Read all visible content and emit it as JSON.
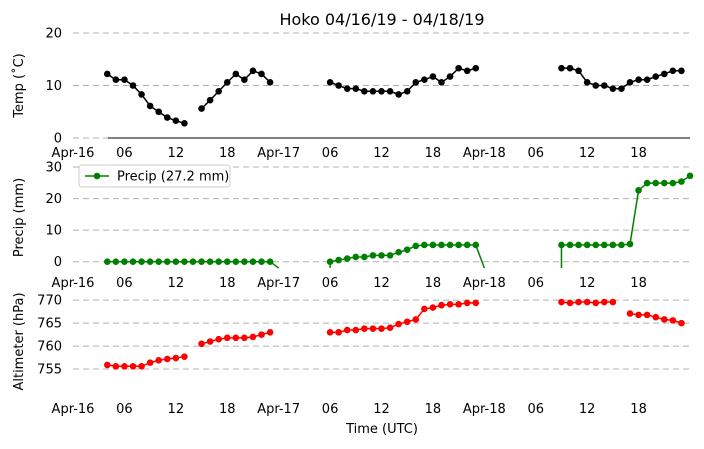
{
  "title": "Hoko 04/16/19 - 04/18/19",
  "xlabel": "Time (UTC)",
  "x_tick_labels": [
    "Apr-16",
    "06",
    "12",
    "18",
    "Apr-17",
    "06",
    "12",
    "18",
    "Apr-18",
    "06",
    "12",
    "18"
  ],
  "colors": {
    "temp": "#000000",
    "precip": "#008000",
    "altimeter": "#ff0000",
    "grid": "#b0b0b0"
  },
  "chart_data": [
    {
      "type": "line",
      "ylabel": "Temp (˚C)",
      "ylim": [
        0,
        20
      ],
      "yticks": [
        0,
        10,
        20
      ],
      "grid": "horizontal dashed",
      "series": [
        {
          "values": [
            [
              "04-16 04:00",
              12.2
            ],
            [
              "04-16 05:00",
              11.1
            ],
            [
              "04-16 06:00",
              11.1
            ],
            [
              "04-16 07:00",
              10.0
            ],
            [
              "04-16 08:00",
              8.3
            ],
            [
              "04-16 09:00",
              6.1
            ],
            [
              "04-16 10:00",
              5.0
            ],
            [
              "04-16 11:00",
              3.9
            ],
            [
              "04-16 12:00",
              3.3
            ],
            [
              "04-16 13:00",
              2.8
            ],
            [
              "04-16 15:00",
              5.6
            ],
            [
              "04-16 16:00",
              7.2
            ],
            [
              "04-16 17:00",
              8.9
            ],
            [
              "04-16 18:00",
              10.6
            ],
            [
              "04-16 19:00",
              12.2
            ],
            [
              "04-16 20:00",
              11.1
            ],
            [
              "04-16 21:00",
              12.8
            ],
            [
              "04-16 22:00",
              12.2
            ],
            [
              "04-16 23:00",
              10.6
            ],
            [
              "04-17 06:00",
              10.6
            ],
            [
              "04-17 07:00",
              10.0
            ],
            [
              "04-17 08:00",
              9.4
            ],
            [
              "04-17 09:00",
              9.4
            ],
            [
              "04-17 10:00",
              8.9
            ],
            [
              "04-17 11:00",
              8.9
            ],
            [
              "04-17 12:00",
              8.9
            ],
            [
              "04-17 13:00",
              8.9
            ],
            [
              "04-17 14:00",
              8.3
            ],
            [
              "04-17 15:00",
              8.9
            ],
            [
              "04-17 16:00",
              10.6
            ],
            [
              "04-17 17:00",
              11.1
            ],
            [
              "04-17 18:00",
              11.7
            ],
            [
              "04-17 19:00",
              10.6
            ],
            [
              "04-17 20:00",
              11.7
            ],
            [
              "04-17 21:00",
              13.3
            ],
            [
              "04-17 22:00",
              12.8
            ],
            [
              "04-17 23:00",
              13.3
            ],
            [
              "04-18 09:00",
              13.3
            ],
            [
              "04-18 10:00",
              13.3
            ],
            [
              "04-18 11:00",
              12.8
            ],
            [
              "04-18 12:00",
              10.6
            ],
            [
              "04-18 13:00",
              10.0
            ],
            [
              "04-18 14:00",
              10.0
            ],
            [
              "04-18 15:00",
              9.4
            ],
            [
              "04-18 16:00",
              9.4
            ],
            [
              "04-18 17:00",
              10.6
            ],
            [
              "04-18 18:00",
              11.1
            ],
            [
              "04-18 19:00",
              11.1
            ],
            [
              "04-18 20:00",
              11.7
            ],
            [
              "04-18 21:00",
              12.2
            ],
            [
              "04-18 22:00",
              12.8
            ],
            [
              "04-18 23:00",
              12.8
            ]
          ]
        }
      ]
    },
    {
      "type": "line",
      "ylabel": "Precip (mm)",
      "ylim": [
        -2,
        30
      ],
      "yticks": [
        0,
        10,
        20,
        30
      ],
      "grid": "horizontal dashed",
      "legend": "top-left",
      "series": [
        {
          "name": "Precip (27.2 mm)",
          "values": [
            [
              "04-16 04:00",
              0.0
            ],
            [
              "04-16 05:00",
              0.0
            ],
            [
              "04-16 06:00",
              0.0
            ],
            [
              "04-16 07:00",
              0.0
            ],
            [
              "04-16 08:00",
              0.0
            ],
            [
              "04-16 09:00",
              0.0
            ],
            [
              "04-16 10:00",
              0.0
            ],
            [
              "04-16 11:00",
              0.0
            ],
            [
              "04-16 12:00",
              0.0
            ],
            [
              "04-16 13:00",
              0.0
            ],
            [
              "04-16 14:00",
              0.0
            ],
            [
              "04-16 15:00",
              0.0
            ],
            [
              "04-16 16:00",
              0.0
            ],
            [
              "04-16 17:00",
              0.0
            ],
            [
              "04-16 18:00",
              0.0
            ],
            [
              "04-16 19:00",
              0.0
            ],
            [
              "04-16 20:00",
              0.0
            ],
            [
              "04-16 21:00",
              0.0
            ],
            [
              "04-16 22:00",
              0.0
            ],
            [
              "04-16 23:00",
              0.0
            ],
            [
              "04-17 00:00",
              -2.0
            ],
            [
              "04-17 06:00",
              -2.0
            ],
            [
              "04-17 06:00",
              0.0
            ],
            [
              "04-17 07:00",
              0.5
            ],
            [
              "04-17 08:00",
              1.0
            ],
            [
              "04-17 09:00",
              1.5
            ],
            [
              "04-17 10:00",
              1.5
            ],
            [
              "04-17 11:00",
              2.0
            ],
            [
              "04-17 12:00",
              2.0
            ],
            [
              "04-17 13:00",
              2.0
            ],
            [
              "04-17 14:00",
              3.0
            ],
            [
              "04-17 15:00",
              3.8
            ],
            [
              "04-17 16:00",
              5.0
            ],
            [
              "04-17 17:00",
              5.3
            ],
            [
              "04-17 18:00",
              5.3
            ],
            [
              "04-17 19:00",
              5.3
            ],
            [
              "04-17 20:00",
              5.3
            ],
            [
              "04-17 21:00",
              5.3
            ],
            [
              "04-17 22:00",
              5.3
            ],
            [
              "04-17 23:00",
              5.3
            ],
            [
              "04-18 00:00",
              -2.0
            ],
            [
              "04-18 09:00",
              -2.0
            ],
            [
              "04-18 09:00",
              5.3
            ],
            [
              "04-18 10:00",
              5.3
            ],
            [
              "04-18 11:00",
              5.3
            ],
            [
              "04-18 12:00",
              5.3
            ],
            [
              "04-18 13:00",
              5.3
            ],
            [
              "04-18 14:00",
              5.3
            ],
            [
              "04-18 15:00",
              5.3
            ],
            [
              "04-18 16:00",
              5.3
            ],
            [
              "04-18 17:00",
              5.6
            ],
            [
              "04-18 18:00",
              22.6
            ],
            [
              "04-18 19:00",
              24.9
            ],
            [
              "04-18 20:00",
              24.9
            ],
            [
              "04-18 21:00",
              24.9
            ],
            [
              "04-18 22:00",
              24.9
            ],
            [
              "04-18 23:00",
              25.4
            ],
            [
              "04-19 00:00",
              27.2
            ]
          ]
        }
      ]
    },
    {
      "type": "line",
      "ylabel": "Altimeter (hPa)",
      "ylim": [
        750,
        772
      ],
      "yticks": [
        755,
        760,
        765,
        770
      ],
      "grid": "horizontal dashed",
      "series": [
        {
          "values": [
            [
              "04-16 04:00",
              755.9
            ],
            [
              "04-16 05:00",
              755.6
            ],
            [
              "04-16 06:00",
              755.6
            ],
            [
              "04-16 07:00",
              755.6
            ],
            [
              "04-16 08:00",
              755.6
            ],
            [
              "04-16 09:00",
              756.4
            ],
            [
              "04-16 10:00",
              756.9
            ],
            [
              "04-16 11:00",
              757.2
            ],
            [
              "04-16 12:00",
              757.4
            ],
            [
              "04-16 13:00",
              757.7
            ],
            [
              "04-16 15:00",
              760.5
            ],
            [
              "04-16 16:00",
              761.0
            ],
            [
              "04-16 17:00",
              761.5
            ],
            [
              "04-16 18:00",
              761.8
            ],
            [
              "04-16 19:00",
              761.8
            ],
            [
              "04-16 20:00",
              761.8
            ],
            [
              "04-16 21:00",
              762.0
            ],
            [
              "04-16 22:00",
              762.5
            ],
            [
              "04-16 23:00",
              763.0
            ],
            [
              "04-17 06:00",
              763.0
            ],
            [
              "04-17 07:00",
              763.0
            ],
            [
              "04-17 08:00",
              763.5
            ],
            [
              "04-17 09:00",
              763.5
            ],
            [
              "04-17 10:00",
              763.8
            ],
            [
              "04-17 11:00",
              763.8
            ],
            [
              "04-17 12:00",
              763.8
            ],
            [
              "04-17 13:00",
              764.0
            ],
            [
              "04-17 14:00",
              764.8
            ],
            [
              "04-17 15:00",
              765.3
            ],
            [
              "04-17 16:00",
              765.8
            ],
            [
              "04-17 17:00",
              768.1
            ],
            [
              "04-17 18:00",
              768.4
            ],
            [
              "04-17 19:00",
              768.9
            ],
            [
              "04-17 20:00",
              769.1
            ],
            [
              "04-17 21:00",
              769.1
            ],
            [
              "04-17 22:00",
              769.4
            ],
            [
              "04-17 23:00",
              769.4
            ],
            [
              "04-18 09:00",
              769.6
            ],
            [
              "04-18 10:00",
              769.4
            ],
            [
              "04-18 11:00",
              769.6
            ],
            [
              "04-18 12:00",
              769.6
            ],
            [
              "04-18 13:00",
              769.4
            ],
            [
              "04-18 14:00",
              769.6
            ],
            [
              "04-18 15:00",
              769.6
            ],
            [
              "04-18 17:00",
              767.1
            ],
            [
              "04-18 18:00",
              766.8
            ],
            [
              "04-18 19:00",
              766.8
            ],
            [
              "04-18 20:00",
              766.3
            ],
            [
              "04-18 21:00",
              765.8
            ],
            [
              "04-18 22:00",
              765.6
            ],
            [
              "04-18 23:00",
              765.0
            ]
          ]
        }
      ]
    }
  ]
}
